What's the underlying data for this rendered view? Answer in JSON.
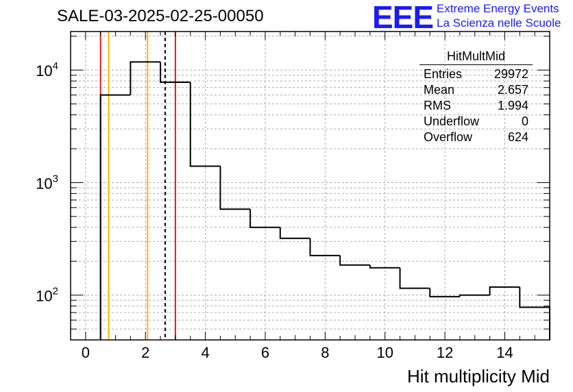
{
  "title": "SALE-03-2025-02-25-00050",
  "logo": {
    "text": "EEE",
    "line1": "Extreme Energy Events",
    "line2": "La Scienza nelle Scuole",
    "color": "#1a1aff"
  },
  "stats": {
    "name": "HitMultMid",
    "rows": [
      {
        "label": "Entries",
        "value": "29972"
      },
      {
        "label": "Mean",
        "value": "2.657"
      },
      {
        "label": "RMS",
        "value": "1.994"
      },
      {
        "label": "Underflow",
        "value": "0"
      },
      {
        "label": "Overflow",
        "value": "624"
      }
    ]
  },
  "chart_data": {
    "type": "histogram",
    "xlabel": "Hit multiplicity Mid",
    "ylabel": "",
    "xlim": [
      -0.5,
      15.5
    ],
    "ylim": [
      40,
      22000
    ],
    "yscale": "log",
    "grid": true,
    "x_ticks": [
      0,
      2,
      4,
      6,
      8,
      10,
      12,
      14
    ],
    "y_major_ticks": [
      {
        "value": 100,
        "base": "10",
        "exp": "2"
      },
      {
        "value": 1000,
        "base": "10",
        "exp": "3"
      },
      {
        "value": 10000,
        "base": "10",
        "exp": "4"
      }
    ],
    "bin_edges": [
      0.5,
      1.5,
      2.5,
      3.5,
      4.5,
      5.5,
      6.5,
      7.5,
      8.5,
      9.5,
      10.5,
      11.5,
      12.5,
      13.5,
      14.5,
      15.5
    ],
    "counts": [
      6000,
      11800,
      7800,
      1400,
      580,
      400,
      320,
      225,
      185,
      175,
      115,
      97,
      100,
      118,
      78
    ],
    "vertical_lines": [
      {
        "x": 0.5,
        "color": "#e31a1a",
        "style": "solid"
      },
      {
        "x": 3.0,
        "color": "#e31a1a",
        "style": "solid"
      },
      {
        "x": 0.77,
        "color": "#ffb300",
        "style": "solid"
      },
      {
        "x": 2.07,
        "color": "#ffb300",
        "style": "solid"
      },
      {
        "x": 2.657,
        "color": "#000000",
        "style": "dashed"
      }
    ]
  }
}
